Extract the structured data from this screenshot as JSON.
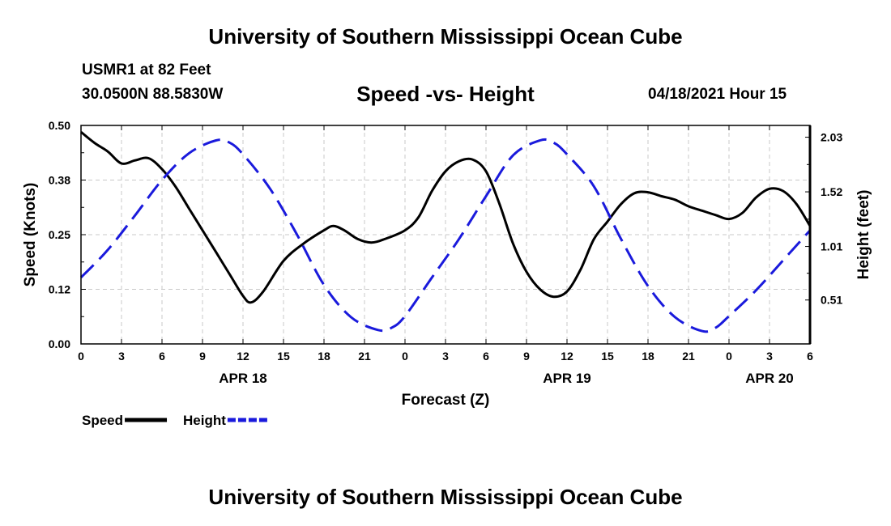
{
  "header": {
    "title": "University of Southern Mississippi Ocean Cube",
    "station": "USMR1 at 82 Feet",
    "coordinates": "30.0500N  88.5830W",
    "subtitle": "Speed -vs- Height",
    "datetime": "04/18/2021 Hour 15"
  },
  "footer": {
    "title": "University of Southern Mississippi Ocean Cube"
  },
  "chart_data": {
    "type": "line",
    "title": "Speed -vs- Height",
    "xlabel": "Forecast (Z)",
    "ylabel": "Speed (Knots)",
    "y2label": "Height (feet)",
    "x_unit": "hours since 04/18 00Z",
    "xlim": [
      0,
      54
    ],
    "ylim": [
      0,
      0.5
    ],
    "y2lim": [
      0.1,
      2.14
    ],
    "grid": true,
    "legend_position": "bottom-left",
    "x_ticks": [
      {
        "x": 0,
        "label": "0"
      },
      {
        "x": 3,
        "label": "3"
      },
      {
        "x": 6,
        "label": "6"
      },
      {
        "x": 9,
        "label": "9"
      },
      {
        "x": 12,
        "label": "12"
      },
      {
        "x": 15,
        "label": "15"
      },
      {
        "x": 18,
        "label": "18"
      },
      {
        "x": 21,
        "label": "21"
      },
      {
        "x": 24,
        "label": "0"
      },
      {
        "x": 27,
        "label": "3"
      },
      {
        "x": 30,
        "label": "6"
      },
      {
        "x": 33,
        "label": "9"
      },
      {
        "x": 36,
        "label": "12"
      },
      {
        "x": 39,
        "label": "15"
      },
      {
        "x": 42,
        "label": "18"
      },
      {
        "x": 45,
        "label": "21"
      },
      {
        "x": 48,
        "label": "0"
      },
      {
        "x": 51,
        "label": "3"
      },
      {
        "x": 54,
        "label": "6"
      }
    ],
    "date_labels": [
      {
        "x": 12,
        "label": "APR 18"
      },
      {
        "x": 36,
        "label": "APR 19"
      },
      {
        "x": 51,
        "label": "APR 20"
      }
    ],
    "y_ticks": [
      {
        "v": 0.0,
        "label": "0.00"
      },
      {
        "v": 0.125,
        "label": "0.12"
      },
      {
        "v": 0.25,
        "label": "0.25"
      },
      {
        "v": 0.375,
        "label": "0.38"
      },
      {
        "v": 0.5,
        "label": "0.50"
      }
    ],
    "y2_ticks": [
      {
        "v": 0.51,
        "label": "0.51"
      },
      {
        "v": 1.01,
        "label": "1.01"
      },
      {
        "v": 1.52,
        "label": "1.52"
      },
      {
        "v": 2.03,
        "label": "2.03"
      }
    ],
    "series": [
      {
        "name": "Speed",
        "axis": "left",
        "color": "#000000",
        "style": "solid",
        "points": [
          [
            0,
            0.485
          ],
          [
            1,
            0.46
          ],
          [
            2,
            0.44
          ],
          [
            3,
            0.413
          ],
          [
            4,
            0.42
          ],
          [
            5,
            0.425
          ],
          [
            6,
            0.4
          ],
          [
            7,
            0.36
          ],
          [
            8,
            0.31
          ],
          [
            9,
            0.26
          ],
          [
            10,
            0.21
          ],
          [
            11,
            0.16
          ],
          [
            12,
            0.11
          ],
          [
            12.6,
            0.095
          ],
          [
            13.5,
            0.12
          ],
          [
            15,
            0.19
          ],
          [
            16.5,
            0.23
          ],
          [
            18,
            0.26
          ],
          [
            18.7,
            0.27
          ],
          [
            19.5,
            0.26
          ],
          [
            20.5,
            0.24
          ],
          [
            21.5,
            0.232
          ],
          [
            22.5,
            0.24
          ],
          [
            24,
            0.26
          ],
          [
            25,
            0.29
          ],
          [
            26,
            0.35
          ],
          [
            27,
            0.395
          ],
          [
            28,
            0.418
          ],
          [
            29,
            0.422
          ],
          [
            30,
            0.395
          ],
          [
            31,
            0.32
          ],
          [
            32,
            0.23
          ],
          [
            33,
            0.165
          ],
          [
            34,
            0.125
          ],
          [
            35,
            0.108
          ],
          [
            36,
            0.12
          ],
          [
            37,
            0.17
          ],
          [
            38,
            0.24
          ],
          [
            39,
            0.28
          ],
          [
            40,
            0.32
          ],
          [
            41,
            0.345
          ],
          [
            42,
            0.347
          ],
          [
            43,
            0.338
          ],
          [
            44,
            0.33
          ],
          [
            45,
            0.315
          ],
          [
            46,
            0.305
          ],
          [
            47,
            0.295
          ],
          [
            48,
            0.286
          ],
          [
            49,
            0.3
          ],
          [
            50,
            0.335
          ],
          [
            51,
            0.355
          ],
          [
            52,
            0.35
          ],
          [
            53,
            0.32
          ],
          [
            54,
            0.27
          ]
        ]
      },
      {
        "name": "Height",
        "axis": "right",
        "color": "#1a1adc",
        "style": "dashed",
        "points": [
          [
            0,
            0.72
          ],
          [
            2,
            0.98
          ],
          [
            4,
            1.3
          ],
          [
            6,
            1.63
          ],
          [
            8,
            1.88
          ],
          [
            10,
            2.0
          ],
          [
            11,
            1.98
          ],
          [
            12,
            1.87
          ],
          [
            14,
            1.55
          ],
          [
            16,
            1.12
          ],
          [
            18,
            0.65
          ],
          [
            20,
            0.35
          ],
          [
            22,
            0.23
          ],
          [
            23,
            0.25
          ],
          [
            24,
            0.36
          ],
          [
            26,
            0.72
          ],
          [
            28,
            1.08
          ],
          [
            30,
            1.48
          ],
          [
            32,
            1.86
          ],
          [
            34,
            2.0
          ],
          [
            35,
            1.98
          ],
          [
            36,
            1.87
          ],
          [
            38,
            1.57
          ],
          [
            40,
            1.08
          ],
          [
            42,
            0.64
          ],
          [
            44,
            0.35
          ],
          [
            46,
            0.22
          ],
          [
            47,
            0.25
          ],
          [
            48,
            0.36
          ],
          [
            50,
            0.6
          ],
          [
            52,
            0.88
          ],
          [
            54,
            1.16
          ]
        ]
      }
    ],
    "legend": [
      {
        "label": "Speed",
        "color": "#000000",
        "style": "solid"
      },
      {
        "label": "Height",
        "color": "#1a1adc",
        "style": "dashed"
      }
    ]
  }
}
